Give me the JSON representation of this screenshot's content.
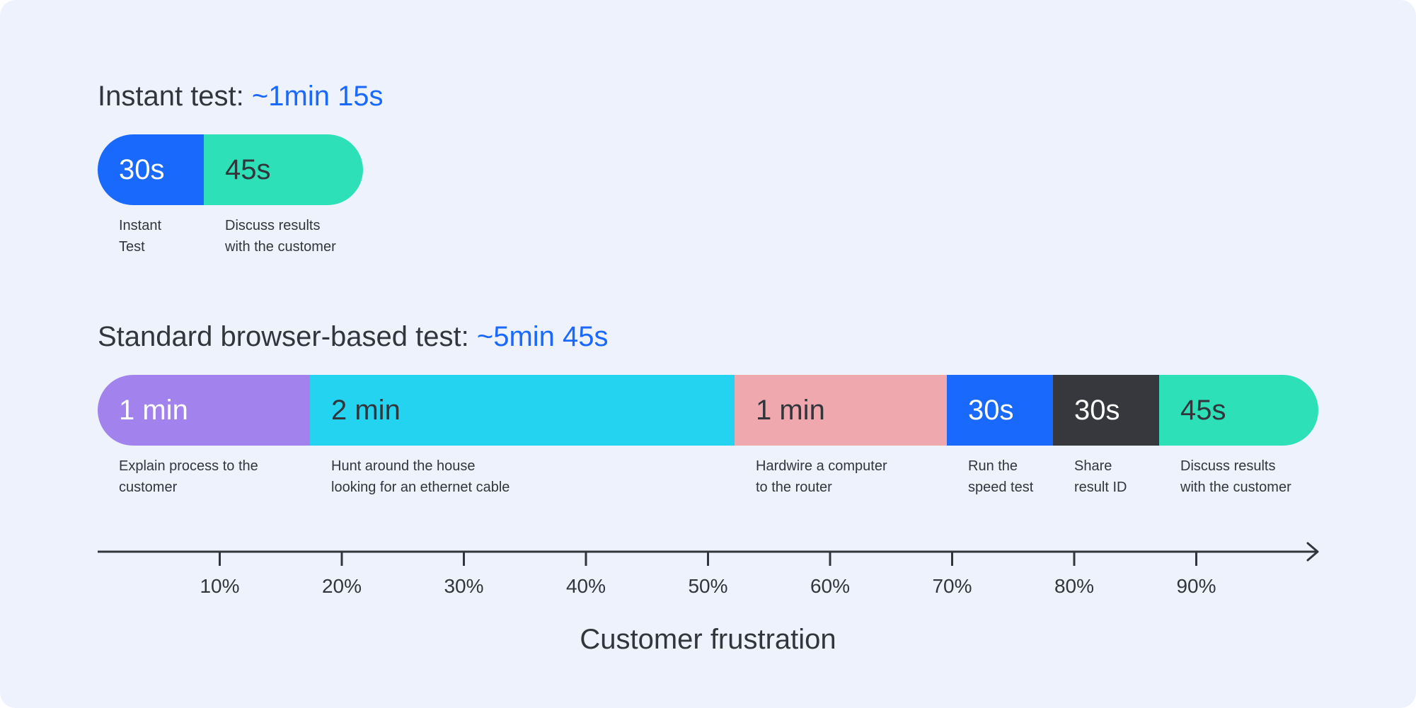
{
  "chart_data": [
    {
      "type": "bar",
      "orientation": "horizontal-stacked",
      "title_prefix": "Instant test: ",
      "title_highlight": "~1min 15s",
      "unit": "seconds",
      "segments": [
        {
          "label": "30s",
          "value": 30,
          "caption": "Instant\nTest",
          "color": "#1a69fd",
          "text_color": "#ffffff"
        },
        {
          "label": "45s",
          "value": 45,
          "caption": "Discuss results\nwith the customer",
          "color": "#2ee0b8",
          "text_color": "#33353c"
        }
      ]
    },
    {
      "type": "bar",
      "orientation": "horizontal-stacked",
      "title_prefix": "Standard browser-based test: ",
      "title_highlight": "~5min 45s",
      "unit": "seconds",
      "segments": [
        {
          "label": "1 min",
          "value": 60,
          "caption": "Explain process to the\ncustomer",
          "color": "#a283ee",
          "text_color": "#ffffff"
        },
        {
          "label": "2 min",
          "value": 120,
          "caption": "Hunt around the house\nlooking for an ethernet cable",
          "color": "#24d3ef",
          "text_color": "#33353c"
        },
        {
          "label": "1 min",
          "value": 60,
          "caption": "Hardwire a computer\nto the router",
          "color": "#eea8ae",
          "text_color": "#33353c"
        },
        {
          "label": "30s",
          "value": 30,
          "caption": "Run the\nspeed test",
          "color": "#1a69fd",
          "text_color": "#ffffff"
        },
        {
          "label": "30s",
          "value": 30,
          "caption": "Share\nresult ID",
          "color": "#37383d",
          "text_color": "#ffffff"
        },
        {
          "label": "45s",
          "value": 45,
          "caption": "Discuss results\nwith the customer",
          "color": "#2ee0b8",
          "text_color": "#33353c"
        }
      ]
    }
  ],
  "axis": {
    "label": "Customer frustration",
    "ticks": [
      "10%",
      "20%",
      "30%",
      "40%",
      "50%",
      "60%",
      "70%",
      "80%",
      "90%"
    ],
    "line_color": "#33353c",
    "arrow": "right"
  }
}
